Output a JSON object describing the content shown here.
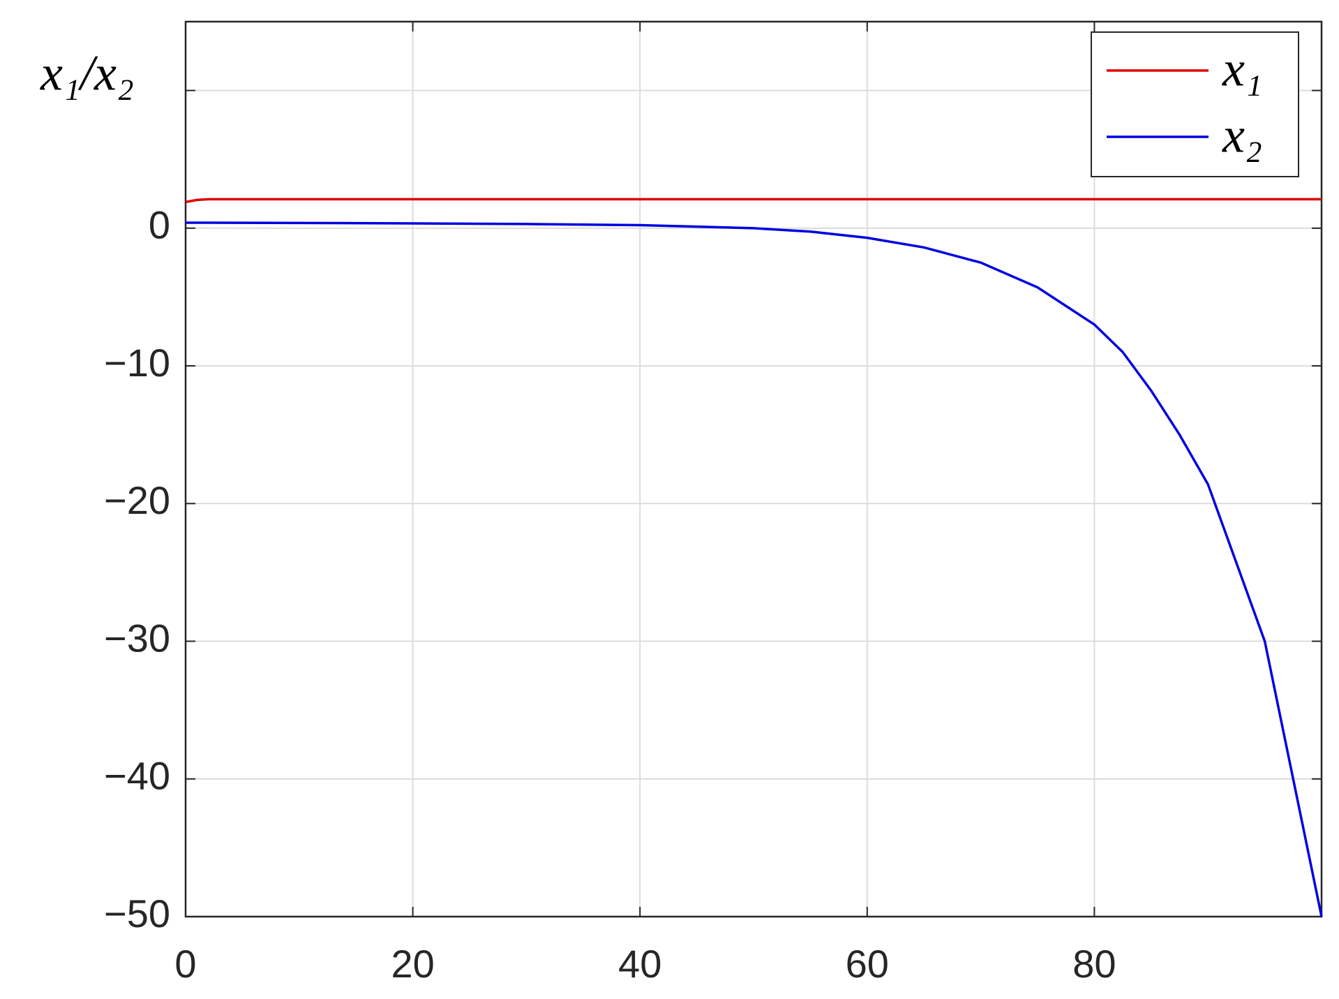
{
  "chart_data": {
    "type": "line",
    "ylabel": "x₁/x₂",
    "x": [
      0,
      1,
      2,
      10,
      20,
      30,
      40,
      50,
      55,
      60,
      65,
      70,
      75,
      80,
      82.5,
      85,
      87.5,
      90,
      92.5,
      95,
      97.5,
      100
    ],
    "series": [
      {
        "name": "x₁",
        "color": "#e00000",
        "values": [
          1.9,
          2.05,
          2.1,
          2.1,
          2.1,
          2.1,
          2.1,
          2.1,
          2.1,
          2.1,
          2.1,
          2.1,
          2.1,
          2.1,
          2.1,
          2.1,
          2.1,
          2.1,
          2.1,
          2.1,
          2.1,
          2.1
        ]
      },
      {
        "name": "x₂",
        "color": "#0000e0",
        "values": [
          0.4,
          0.4,
          0.4,
          0.38,
          0.35,
          0.3,
          0.22,
          0.0,
          -0.25,
          -0.7,
          -1.4,
          -2.5,
          -4.3,
          -7.0,
          -9.0,
          -11.8,
          -15.0,
          -18.6,
          -24.3,
          -30,
          -40,
          -50
        ]
      }
    ],
    "xlim": [
      0,
      100
    ],
    "xticks": [
      0,
      20,
      40,
      60,
      80
    ],
    "ylim": [
      -50,
      15
    ],
    "yticks": [
      {
        "value": -50,
        "label": "−50"
      },
      {
        "value": -40,
        "label": "−40"
      },
      {
        "value": -30,
        "label": "−30"
      },
      {
        "value": -20,
        "label": "−20"
      },
      {
        "value": -10,
        "label": "−10"
      },
      0,
      {
        "value": 10,
        "label": null
      }
    ],
    "grid": true,
    "legend": "top-right"
  }
}
